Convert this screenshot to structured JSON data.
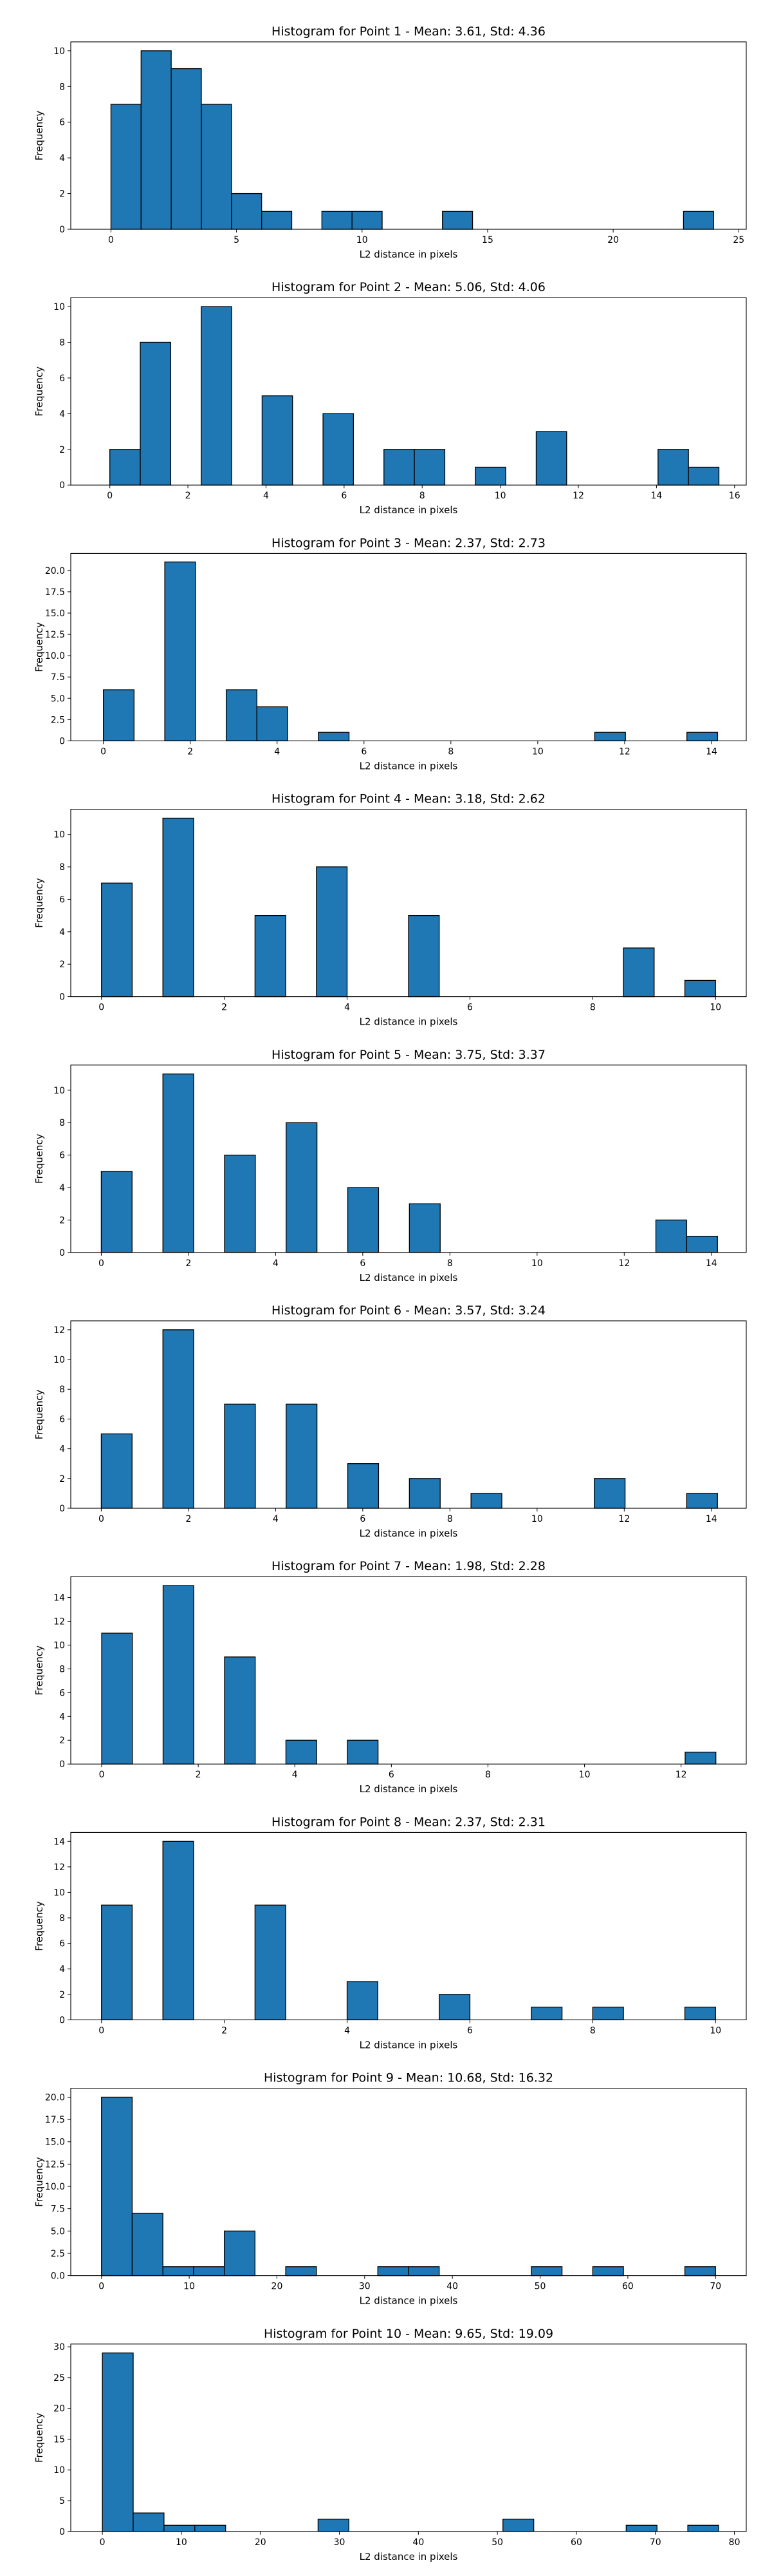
{
  "chart_data": [
    {
      "type": "histogram",
      "title": "Histogram for Point 1 - Mean: 3.61, Std: 4.36",
      "xlabel": "L2 distance in pixels",
      "ylabel": "Frequency",
      "xlim": [
        -1.6,
        25.3
      ],
      "ylim": [
        0,
        10.5
      ],
      "xticks": [
        0,
        5,
        10,
        15,
        20,
        25
      ],
      "yticks": [
        0,
        2,
        4,
        6,
        8,
        10
      ],
      "bin_start": 0,
      "bin_width": 1.2,
      "counts": [
        7,
        10,
        9,
        7,
        2,
        1,
        0,
        1,
        1,
        0,
        0,
        1,
        0,
        0,
        0,
        0,
        0,
        0,
        0,
        1
      ]
    },
    {
      "type": "histogram",
      "title": "Histogram for Point 2 - Mean: 5.06, Std: 4.06",
      "xlabel": "L2 distance in pixels",
      "ylabel": "Frequency",
      "xlim": [
        -1.0,
        16.3
      ],
      "ylim": [
        0,
        10.5
      ],
      "xticks": [
        0,
        2,
        4,
        6,
        8,
        10,
        12,
        14,
        16
      ],
      "yticks": [
        0,
        2,
        4,
        6,
        8,
        10
      ],
      "bin_start": 0,
      "bin_width": 0.78,
      "counts": [
        2,
        8,
        0,
        10,
        0,
        5,
        0,
        4,
        0,
        2,
        2,
        0,
        1,
        0,
        3,
        0,
        0,
        0,
        2,
        1
      ]
    },
    {
      "type": "histogram",
      "title": "Histogram for Point 3 - Mean: 2.37, Std: 2.73",
      "xlabel": "L2 distance in pixels",
      "ylabel": "Frequency",
      "xlim": [
        -0.75,
        14.8
      ],
      "ylim": [
        0,
        22
      ],
      "xticks": [
        0,
        2,
        4,
        6,
        8,
        10,
        12,
        14
      ],
      "yticks": [
        0,
        2.5,
        5.0,
        7.5,
        10.0,
        12.5,
        15.0,
        17.5,
        20.0
      ],
      "ytick_labels": [
        "0",
        "2.5",
        "5.0",
        "7.5",
        "10.0",
        "12.5",
        "15.0",
        "17.5",
        "20.0"
      ],
      "bin_start": 0,
      "bin_width": 0.707,
      "counts": [
        6,
        0,
        21,
        0,
        6,
        4,
        0,
        1,
        0,
        0,
        0,
        0,
        0,
        0,
        0,
        0,
        1,
        0,
        0,
        1
      ]
    },
    {
      "type": "histogram",
      "title": "Histogram for Point 4 - Mean: 3.18, Std: 2.62",
      "xlabel": "L2 distance in pixels",
      "ylabel": "Frequency",
      "xlim": [
        -0.5,
        10.5
      ],
      "ylim": [
        0,
        11.55
      ],
      "xticks": [
        0,
        2,
        4,
        6,
        8,
        10
      ],
      "yticks": [
        0,
        2,
        4,
        6,
        8,
        10
      ],
      "bin_start": 0,
      "bin_width": 0.5,
      "counts": [
        7,
        0,
        11,
        0,
        0,
        5,
        0,
        8,
        0,
        0,
        5,
        0,
        0,
        0,
        0,
        0,
        0,
        3,
        0,
        1
      ]
    },
    {
      "type": "histogram",
      "title": "Histogram for Point 5 - Mean: 3.75, Std: 3.37",
      "xlabel": "L2 distance in pixels",
      "ylabel": "Frequency",
      "xlim": [
        -0.7,
        14.8
      ],
      "ylim": [
        0,
        11.55
      ],
      "xticks": [
        0,
        2,
        4,
        6,
        8,
        10,
        12,
        14
      ],
      "yticks": [
        0,
        2,
        4,
        6,
        8,
        10
      ],
      "bin_start": 0,
      "bin_width": 0.707,
      "counts": [
        5,
        0,
        11,
        0,
        6,
        0,
        8,
        0,
        4,
        0,
        3,
        0,
        0,
        0,
        0,
        0,
        0,
        0,
        2,
        1
      ]
    },
    {
      "type": "histogram",
      "title": "Histogram for Point 6 - Mean: 3.57, Std: 3.24",
      "xlabel": "L2 distance in pixels",
      "ylabel": "Frequency",
      "xlim": [
        -0.7,
        14.8
      ],
      "ylim": [
        0,
        12.6
      ],
      "xticks": [
        0,
        2,
        4,
        6,
        8,
        10,
        12,
        14
      ],
      "yticks": [
        0,
        2,
        4,
        6,
        8,
        10,
        12
      ],
      "bin_start": 0,
      "bin_width": 0.707,
      "counts": [
        5,
        0,
        12,
        0,
        7,
        0,
        7,
        0,
        3,
        0,
        2,
        0,
        1,
        0,
        0,
        0,
        2,
        0,
        0,
        1
      ]
    },
    {
      "type": "histogram",
      "title": "Histogram for Point 7 - Mean: 1.98, Std: 2.28",
      "xlabel": "L2 distance in pixels",
      "ylabel": "Frequency",
      "xlim": [
        -0.64,
        13.35
      ],
      "ylim": [
        0,
        15.75
      ],
      "xticks": [
        0,
        2,
        4,
        6,
        8,
        10,
        12
      ],
      "yticks": [
        0,
        2,
        4,
        6,
        8,
        10,
        12,
        14
      ],
      "bin_start": 0,
      "bin_width": 0.636,
      "counts": [
        11,
        0,
        15,
        0,
        9,
        0,
        2,
        0,
        2,
        0,
        0,
        0,
        0,
        0,
        0,
        0,
        0,
        0,
        0,
        1
      ]
    },
    {
      "type": "histogram",
      "title": "Histogram for Point 8 - Mean: 2.37, Std: 2.31",
      "xlabel": "L2 distance in pixels",
      "ylabel": "Frequency",
      "xlim": [
        -0.5,
        10.5
      ],
      "ylim": [
        0,
        14.7
      ],
      "xticks": [
        0,
        2,
        4,
        6,
        8,
        10
      ],
      "yticks": [
        0,
        2,
        4,
        6,
        8,
        10,
        12,
        14
      ],
      "bin_start": 0,
      "bin_width": 0.5,
      "counts": [
        9,
        0,
        14,
        0,
        0,
        9,
        0,
        0,
        3,
        0,
        0,
        2,
        0,
        0,
        1,
        0,
        1,
        0,
        0,
        1
      ]
    },
    {
      "type": "histogram",
      "title": "Histogram for Point 9 - Mean: 10.68, Std: 16.32",
      "xlabel": "L2 distance in pixels",
      "ylabel": "Frequency",
      "xlim": [
        -3.5,
        73.5
      ],
      "ylim": [
        0,
        21
      ],
      "xticks": [
        0,
        10,
        20,
        30,
        40,
        50,
        60,
        70
      ],
      "yticks": [
        0,
        2.5,
        5.0,
        7.5,
        10.0,
        12.5,
        15.0,
        17.5,
        20.0
      ],
      "ytick_labels": [
        "0.0",
        "2.5",
        "5.0",
        "7.5",
        "10.0",
        "12.5",
        "15.0",
        "17.5",
        "20.0"
      ],
      "bin_start": 0,
      "bin_width": 3.5,
      "counts": [
        20,
        7,
        1,
        1,
        5,
        0,
        1,
        0,
        0,
        1,
        1,
        0,
        0,
        0,
        1,
        0,
        1,
        0,
        0,
        1
      ]
    },
    {
      "type": "histogram",
      "title": "Histogram for Point 10 - Mean: 9.65, Std: 19.09",
      "xlabel": "L2 distance in pixels",
      "ylabel": "Frequency",
      "xlim": [
        -4.0,
        81.5
      ],
      "ylim": [
        0,
        30.45
      ],
      "xticks": [
        0,
        10,
        20,
        30,
        40,
        50,
        60,
        70,
        80
      ],
      "yticks": [
        0,
        5,
        10,
        15,
        20,
        25,
        30
      ],
      "bin_start": 0,
      "bin_width": 3.9,
      "counts": [
        29,
        3,
        1,
        1,
        0,
        0,
        0,
        2,
        0,
        0,
        0,
        0,
        0,
        2,
        0,
        0,
        0,
        1,
        0,
        1
      ]
    }
  ]
}
